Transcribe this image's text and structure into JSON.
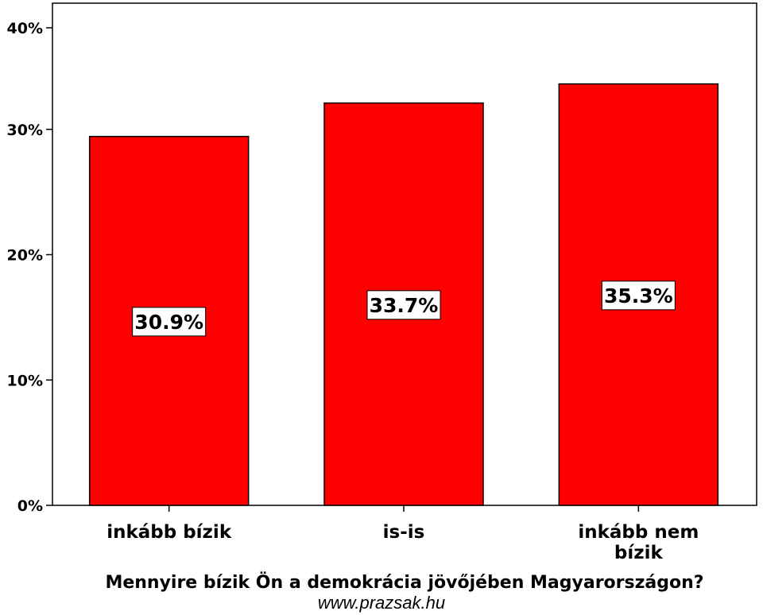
{
  "chart_data": {
    "type": "bar",
    "categories": [
      [
        "inkább bízik"
      ],
      [
        "is-is"
      ],
      [
        "inkább nem",
        "bízik"
      ]
    ],
    "values": [
      30.9,
      33.7,
      35.3
    ],
    "value_labels": [
      "30.9%",
      "33.7%",
      "35.3%"
    ],
    "xlabel": "Mennyire bízik Ön a demokrácia jövőjében  Magyarországon?",
    "ylabel": "",
    "ylim": [
      0,
      40
    ],
    "yticks": [
      0,
      10,
      20,
      30,
      40
    ],
    "ytick_labels": [
      "0%",
      "10%",
      "20%",
      "30%",
      "40%"
    ],
    "grid": false,
    "bar_color": "#ff0000",
    "label_box_color": "#ffffff"
  },
  "watermark": "www.prazsak.hu"
}
